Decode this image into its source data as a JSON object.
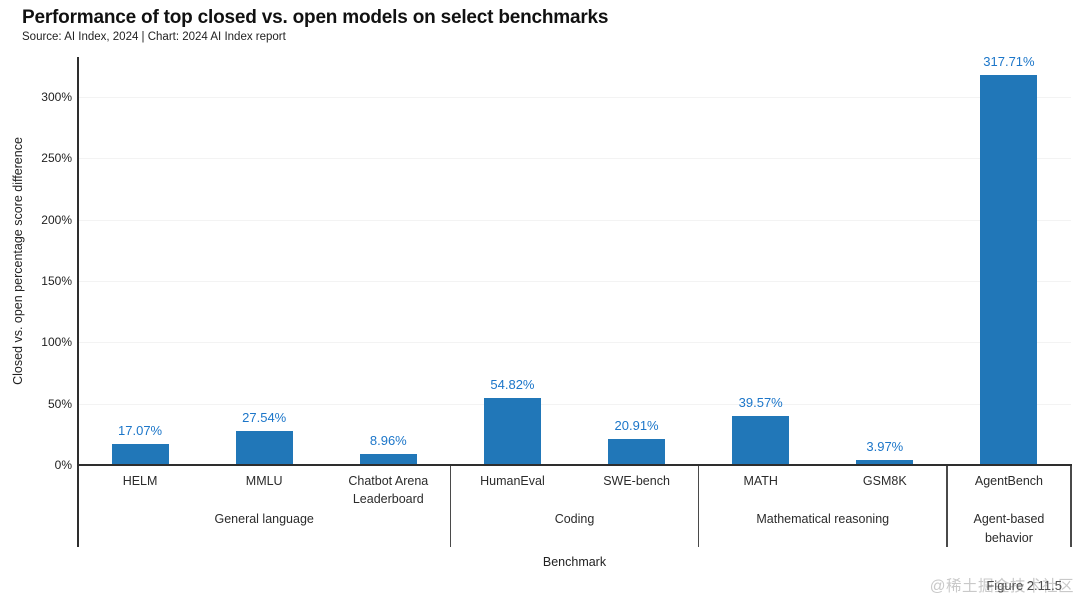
{
  "header": {
    "title": "Performance of top closed vs. open models on select benchmarks",
    "source": "Source: AI Index, 2024 | Chart: 2024 AI Index report"
  },
  "chart_data": {
    "type": "bar",
    "title": "Performance of top closed vs. open models on select benchmarks",
    "xlabel": "Benchmark",
    "ylabel": "Closed vs. open percentage score difference",
    "ylim": [
      0,
      330
    ],
    "grid": "horizontal-faint",
    "legend": "none",
    "bar_color": "#2177b8",
    "value_label_color": "#1c76c9",
    "y_ticks": [
      {
        "value": 0,
        "label": "0%"
      },
      {
        "value": 50,
        "label": "50%"
      },
      {
        "value": 100,
        "label": "100%"
      },
      {
        "value": 150,
        "label": "150%"
      },
      {
        "value": 200,
        "label": "200%"
      },
      {
        "value": 250,
        "label": "250%"
      },
      {
        "value": 300,
        "label": "300%"
      }
    ],
    "groups": [
      {
        "label": "General language",
        "bars": [
          {
            "category": "HELM",
            "value": 17.07,
            "display": "17.07%"
          },
          {
            "category": "MMLU",
            "value": 27.54,
            "display": "27.54%"
          },
          {
            "category": "Chatbot Arena Leaderboard",
            "value": 8.96,
            "display": "8.96%"
          }
        ]
      },
      {
        "label": "Coding",
        "bars": [
          {
            "category": "HumanEval",
            "value": 54.82,
            "display": "54.82%"
          },
          {
            "category": "SWE-bench",
            "value": 20.91,
            "display": "20.91%"
          }
        ]
      },
      {
        "label": "Mathematical reasoning",
        "bars": [
          {
            "category": "MATH",
            "value": 39.57,
            "display": "39.57%"
          },
          {
            "category": "GSM8K",
            "value": 3.97,
            "display": "3.97%"
          }
        ]
      },
      {
        "label": "Agent-based behavior",
        "bars": [
          {
            "category": "AgentBench",
            "value": 317.71,
            "display": "317.71%"
          }
        ]
      }
    ]
  },
  "footer": {
    "figure_label": "Figure 2.11.5",
    "watermark": "@稀土掘金技术社区"
  }
}
